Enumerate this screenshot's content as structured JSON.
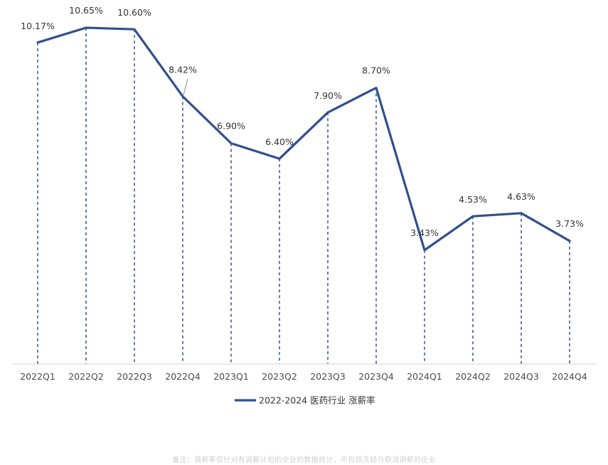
{
  "chart_data": {
    "type": "line",
    "categories": [
      "2022Q1",
      "2022Q2",
      "2022Q3",
      "2022Q4",
      "2023Q1",
      "2023Q2",
      "2023Q3",
      "2023Q4",
      "2024Q1",
      "2024Q2",
      "2024Q3",
      "2024Q4"
    ],
    "series": [
      {
        "name": "2022-2024 医药行业 涨薪率",
        "values": [
          10.17,
          10.65,
          10.6,
          8.42,
          6.9,
          6.4,
          7.9,
          8.7,
          3.43,
          4.53,
          4.63,
          3.73
        ],
        "labels": [
          "10.17%",
          "10.65%",
          "10.60%",
          "8.42%",
          "6.90%",
          "6.40%",
          "7.90%",
          "8.70%",
          "3.43%",
          "4.53%",
          "4.63%",
          "3.73%"
        ],
        "color": "#2f4f8f"
      }
    ],
    "title": "",
    "xlabel": "",
    "ylabel": "",
    "ylim": [
      0,
      11
    ],
    "grid": false,
    "drop_lines": "dashed",
    "legend_position": "bottom-center"
  },
  "footnote": "备注：调薪率仅针对有调薪计划的企业的数据统计，不包括冻结与取消调薪的企业"
}
